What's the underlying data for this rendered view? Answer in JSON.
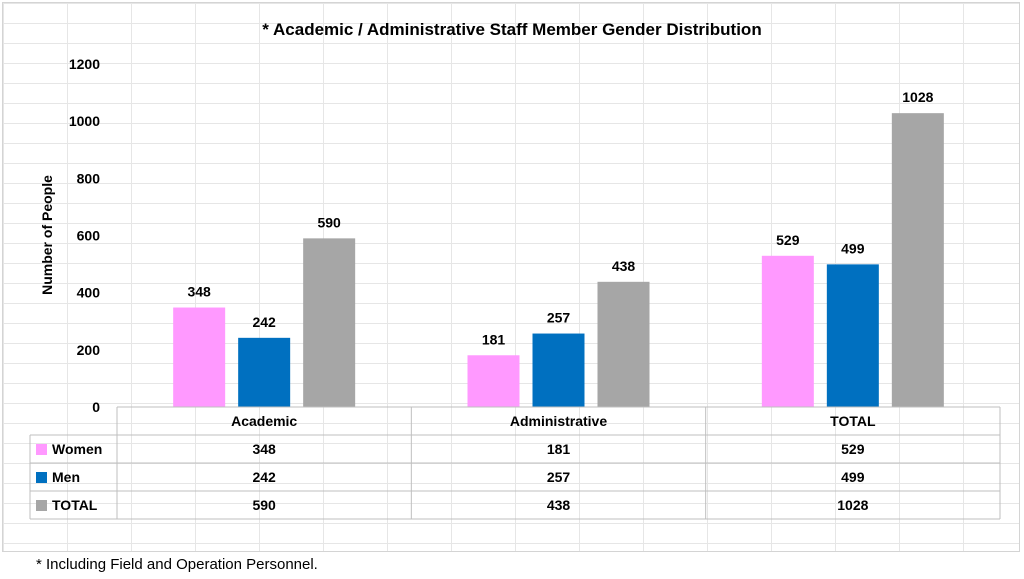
{
  "chart_data": {
    "type": "bar",
    "title": "* Academic / Administrative Staff Member Gender Distribution",
    "xlabel": "",
    "ylabel": "Number of People",
    "ylim": [
      0,
      1200
    ],
    "yticks": [
      0,
      200,
      400,
      600,
      800,
      1000,
      1200
    ],
    "grid": false,
    "categories": [
      "Academic",
      "Administrative",
      "TOTAL"
    ],
    "series": [
      {
        "name": "Women",
        "color": "#ff99ff",
        "values": [
          348,
          181,
          529
        ]
      },
      {
        "name": "Men",
        "color": "#0070c0",
        "values": [
          242,
          257,
          499
        ]
      },
      {
        "name": "TOTAL",
        "color": "#a6a6a6",
        "values": [
          590,
          438,
          1028
        ]
      }
    ],
    "data_table": true
  },
  "footnote": "* Including Field and Operation Personnel."
}
